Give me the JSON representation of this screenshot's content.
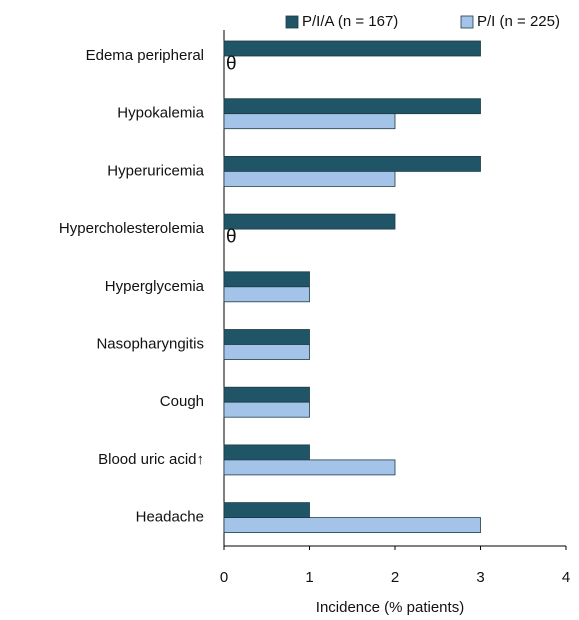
{
  "chart_data": {
    "type": "hbar",
    "categories": [
      "Edema peripheral",
      "Hypokalemia",
      "Hyperuricemia",
      "Hypercholesterolemia",
      "Hyperglycemia",
      "Nasopharyngitis",
      "Cough",
      "Blood uric acid↑",
      "Headache"
    ],
    "series": [
      {
        "name": "P/I/A (n = 167)",
        "color": "#1f5566",
        "values": [
          3,
          3,
          3,
          2,
          1,
          1,
          1,
          1,
          1
        ]
      },
      {
        "name": "P/I (n = 225)",
        "color": "#a3c4e8",
        "values": [
          0,
          2,
          2,
          0,
          1,
          1,
          1,
          2,
          3
        ],
        "value_labels": [
          "θ",
          null,
          null,
          "θ",
          null,
          null,
          null,
          null,
          null
        ]
      }
    ],
    "xlabel": "Incidence (% patients)",
    "xlim": [
      0,
      4
    ],
    "xticks": [
      0,
      1,
      2,
      3,
      4
    ],
    "legend": "top-right",
    "grid": false
  }
}
